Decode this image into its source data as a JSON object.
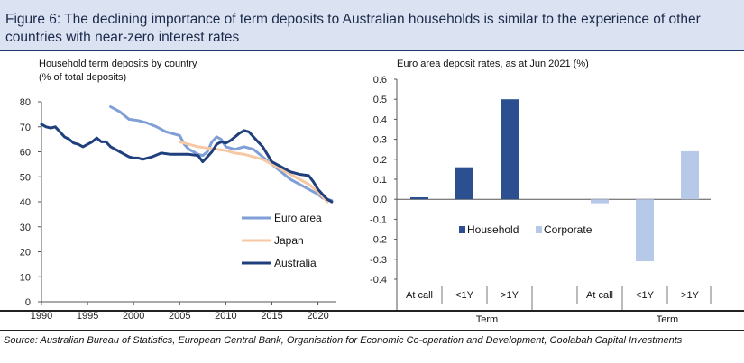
{
  "figure_title": "Figure 6: The declining importance of term deposits to Australian households is similar to the experience of other countries with near-zero interest rates",
  "source_note": "Source: Australian Bureau of Statistics, European Central Bank, Organisation for Economic Co-operation and Development, Coolabah Capital Investments",
  "colors": {
    "header_bg": "#dbe3f3",
    "euro_area": "#7f9fd6",
    "japan": "#f6c8a3",
    "australia": "#1f3f7d",
    "household": "#2b4f8f",
    "corporate": "#b7c9e8"
  },
  "chart_data": [
    {
      "type": "line",
      "title_line1": "Household term deposits by country",
      "title_line2": "(% of total deposits)",
      "xlim": [
        1990,
        2022
      ],
      "ylim": [
        0,
        80
      ],
      "xticks": [
        1990,
        1995,
        2000,
        2005,
        2010,
        2015,
        2020
      ],
      "yticks": [
        0,
        10,
        20,
        30,
        40,
        50,
        60,
        70,
        80
      ],
      "legend_position": "bottom-right",
      "series": [
        {
          "name": "Euro area",
          "color": "#7f9fd6",
          "x": [
            1997.5,
            1998.5,
            1999.5,
            2000.5,
            2001.5,
            2002.5,
            2003.5,
            2004.5,
            2005.0,
            2005.5,
            2006.0,
            2006.5,
            2007.0,
            2007.5,
            2008.0,
            2008.5,
            2009.0,
            2009.5,
            2010.0,
            2011.0,
            2012.0,
            2013.0,
            2014.0,
            2015.0,
            2016.0,
            2017.0,
            2018.0,
            2019.0,
            2020.0,
            2020.5,
            2021.0,
            2021.5
          ],
          "values": [
            78,
            76,
            73,
            72.5,
            71.5,
            70,
            68,
            67,
            66.5,
            63,
            61,
            60,
            59,
            58.5,
            60,
            64,
            66,
            65,
            62,
            61,
            62,
            61,
            58,
            55,
            52,
            49,
            47,
            45,
            43,
            41.5,
            41,
            40.5
          ]
        },
        {
          "name": "Japan",
          "color": "#f6c8a3",
          "x": [
            2005.0,
            2006.0,
            2007.0,
            2008.0,
            2009.0,
            2010.0,
            2011.0,
            2012.0,
            2013.0,
            2014.0,
            2015.0,
            2016.0,
            2017.0,
            2018.0,
            2019.0,
            2020.0,
            2021.0
          ],
          "values": [
            64,
            63,
            62,
            61.5,
            61,
            60.5,
            59.5,
            59,
            58,
            57,
            55,
            53,
            51,
            49,
            47,
            44,
            40
          ]
        },
        {
          "name": "Australia",
          "color": "#1f3f7d",
          "x": [
            1990.0,
            1990.5,
            1991.0,
            1991.5,
            1992.0,
            1992.5,
            1993.0,
            1993.5,
            1994.0,
            1994.5,
            1995.0,
            1995.5,
            1996.0,
            1996.5,
            1997.0,
            1997.5,
            1998.0,
            1998.5,
            1999.0,
            1999.5,
            2000.0,
            2000.5,
            2001.0,
            2001.5,
            2002.0,
            2003.0,
            2004.0,
            2005.0,
            2006.0,
            2007.0,
            2007.5,
            2008.0,
            2008.5,
            2009.0,
            2009.5,
            2010.0,
            2010.5,
            2011.0,
            2011.5,
            2012.0,
            2012.5,
            2013.0,
            2013.5,
            2014.0,
            2014.5,
            2015.0,
            2016.0,
            2017.0,
            2018.0,
            2019.0,
            2019.5,
            2020.0,
            2020.5,
            2021.0,
            2021.5
          ],
          "values": [
            71,
            70,
            69.5,
            70,
            68,
            66,
            65,
            63.5,
            63,
            62,
            63,
            64,
            65.5,
            64,
            64,
            62,
            61,
            60,
            59,
            58,
            57.5,
            57.5,
            57,
            57.5,
            58,
            59.5,
            59,
            59,
            59,
            58.5,
            56,
            58,
            60,
            63,
            64,
            63.5,
            64.5,
            66,
            67.5,
            68.5,
            68,
            66,
            64,
            62,
            59,
            56,
            54,
            52,
            51,
            50.5,
            48,
            45,
            43,
            41,
            40
          ]
        }
      ]
    },
    {
      "type": "bar",
      "title": "Euro area deposit rates, as at Jun 2021 (%)",
      "ylim": [
        -0.4,
        0.6
      ],
      "yticks": [
        -0.4,
        -0.3,
        -0.2,
        -0.1,
        0.0,
        0.1,
        0.2,
        0.3,
        0.4,
        0.5,
        0.6
      ],
      "categories": [
        "At call",
        "<1Y",
        ">1Y",
        "At call",
        "<1Y",
        ">1Y"
      ],
      "group_label": "Term",
      "legend_position": "middle",
      "series": [
        {
          "name": "Household",
          "color": "#2b4f8f",
          "values": [
            0.01,
            0.16,
            0.5,
            null,
            null,
            null
          ]
        },
        {
          "name": "Corporate",
          "color": "#b7c9e8",
          "values": [
            null,
            null,
            null,
            -0.02,
            -0.31,
            0.24
          ]
        }
      ]
    }
  ]
}
